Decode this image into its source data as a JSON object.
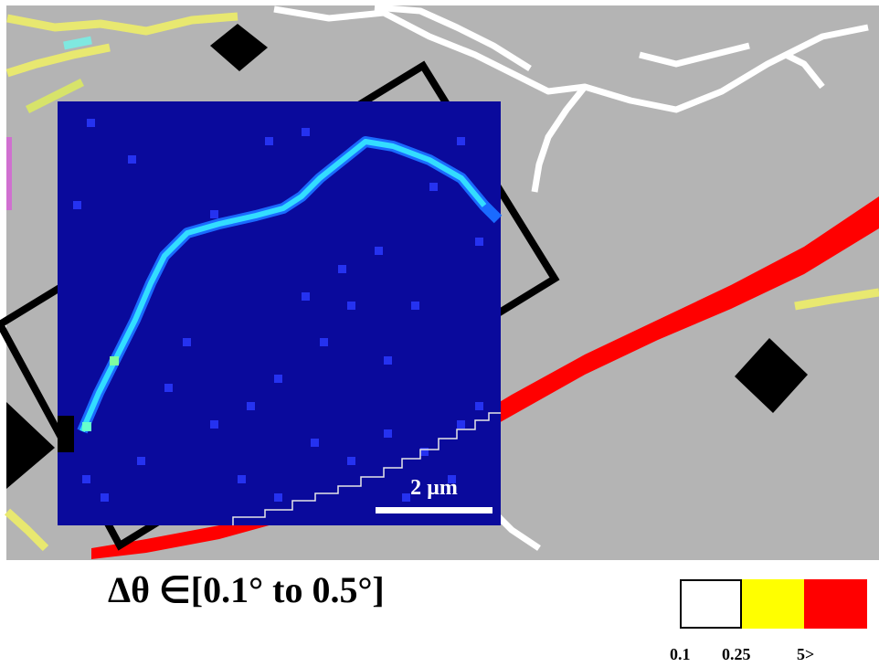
{
  "caption": {
    "text": "Δθ ∈[0.1° to 0.5°]"
  },
  "scale_bar": {
    "label": "2 µm"
  },
  "legend": {
    "items": [
      {
        "label": "0.1",
        "color": "#ffffff"
      },
      {
        "label": "0.25",
        "color": "#ffff00"
      },
      {
        "label": "5>",
        "color": "#ff0000"
      }
    ]
  },
  "colors": {
    "background_gray": "#b4b4b4",
    "inset_blue": "#0a0a9c",
    "high_angle_boundary": "#ff0000",
    "low_angle_boundary": "#ffffff",
    "boundary_highlight": "#33ddff",
    "frame": "#000000"
  }
}
